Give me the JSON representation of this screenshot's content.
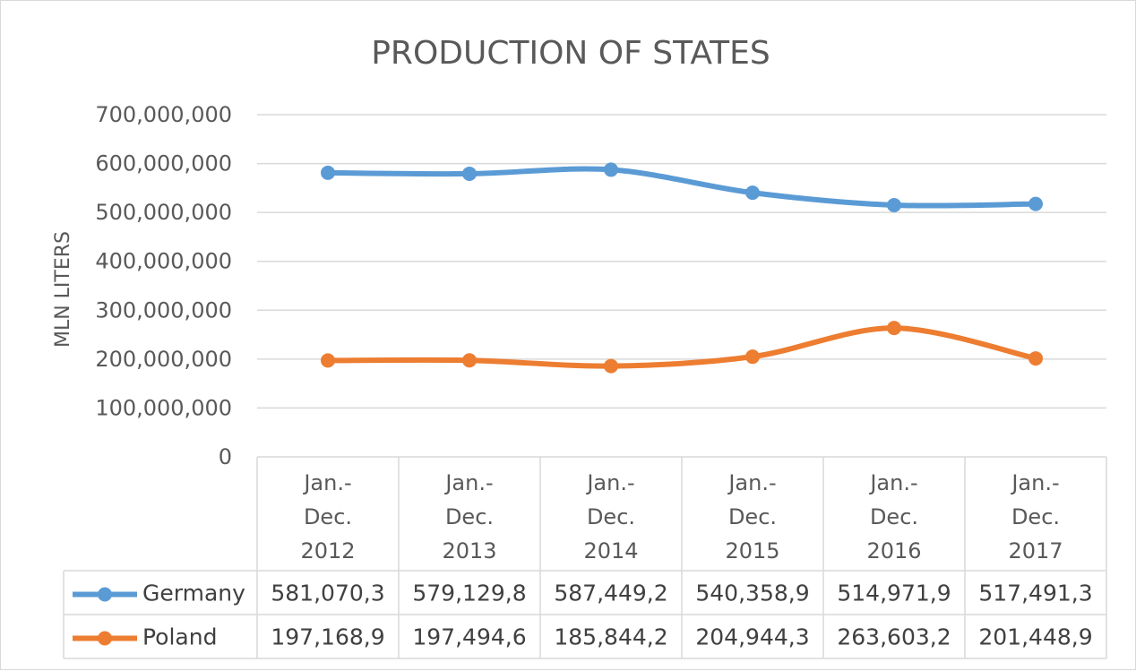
{
  "chart_data": {
    "type": "line",
    "title": "PRODUCTION OF STATES",
    "xlabel": "",
    "ylabel": "MLN  LITERS",
    "ylim": [
      0,
      700000000
    ],
    "yticks": [
      0,
      100000000,
      200000000,
      300000000,
      400000000,
      500000000,
      600000000,
      700000000
    ],
    "ytick_labels": [
      "0",
      "100,000,000",
      "200,000,000",
      "300,000,000",
      "400,000,000",
      "500,000,000",
      "600,000,000",
      "700,000,000"
    ],
    "grid": true,
    "legend": "data-table",
    "categories": [
      [
        "Jan.-",
        "Dec.",
        "2012"
      ],
      [
        "Jan.-",
        "Dec.",
        "2013"
      ],
      [
        "Jan.-",
        "Dec.",
        "2014"
      ],
      [
        "Jan.-",
        "Dec.",
        "2015"
      ],
      [
        "Jan.-",
        "Dec.",
        "2016"
      ],
      [
        "Jan.-",
        "Dec.",
        "2017"
      ]
    ],
    "series": [
      {
        "name": "Germany",
        "color": "#5b9bd5",
        "values": [
          581070300,
          579129800,
          587449200,
          540358900,
          514971900,
          517491300
        ],
        "labels": [
          "581,070,3",
          "579,129,8",
          "587,449,2",
          "540,358,9",
          "514,971,9",
          "517,491,3"
        ]
      },
      {
        "name": "Poland",
        "color": "#ed7d31",
        "values": [
          197168900,
          197494600,
          185844200,
          204944300,
          263603200,
          201448900
        ],
        "labels": [
          "197,168,9",
          "197,494,6",
          "185,844,2",
          "204,944,3",
          "263,603,2",
          "201,448,9"
        ]
      }
    ]
  }
}
